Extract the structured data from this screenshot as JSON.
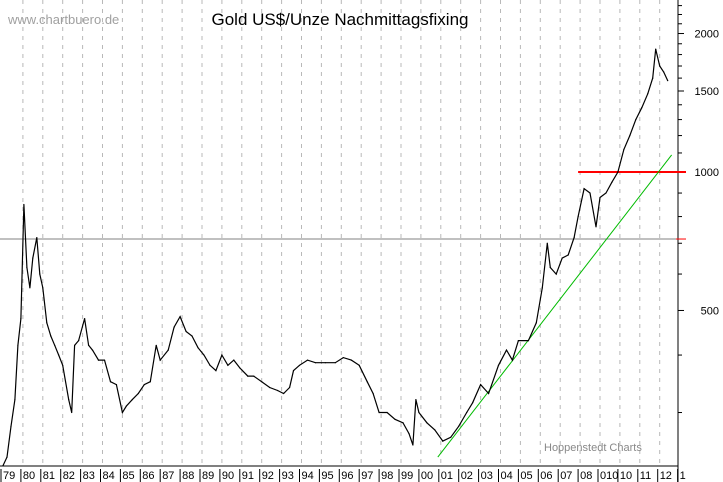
{
  "chart_data": {
    "type": "line",
    "title": "Gold US$/Unze Nachmittagsfixing",
    "watermark": "www.chartbuero.de",
    "source": "Hoppenstedt Charts",
    "y_scale": "log",
    "ylim": [
      230,
      2370
    ],
    "y_ticks": [
      500,
      1000,
      1500,
      2000
    ],
    "x_tick_labels": [
      "79",
      "80",
      "81",
      "82",
      "83",
      "84",
      "85",
      "86",
      "87",
      "88",
      "89",
      "90",
      "91",
      "92",
      "93",
      "94",
      "95",
      "96",
      "97",
      "98",
      "99",
      "00",
      "01",
      "02",
      "03",
      "04",
      "05",
      "06",
      "07",
      "08",
      "010",
      "10",
      "11",
      "12",
      "1"
    ],
    "xlim": [
      1979.0,
      2012.5
    ],
    "grid": "vertical dashed per year",
    "colors": {
      "price": "#000000",
      "resistance": "#ff0000",
      "trend": "#00bb00",
      "reference": "#808080"
    },
    "series": [
      {
        "x": [
          1979.0,
          1979.2,
          1979.4,
          1979.6,
          1979.75,
          1979.9,
          1980.05,
          1980.2,
          1980.35,
          1980.5,
          1980.7,
          1980.85,
          1981.0,
          1981.2,
          1981.4,
          1981.6,
          1981.8,
          1982.0,
          1982.3,
          1982.45,
          1982.6,
          1982.8,
          1983.1,
          1983.3,
          1983.5,
          1983.8,
          1984.1,
          1984.4,
          1984.7,
          1985.0,
          1985.2,
          1985.5,
          1985.8,
          1986.1,
          1986.4,
          1986.7,
          1986.9,
          1987.3,
          1987.6,
          1987.9,
          1988.2,
          1988.5,
          1988.8,
          1989.1,
          1989.4,
          1989.7,
          1990.0,
          1990.3,
          1990.6,
          1990.9,
          1991.3,
          1991.6,
          1992.0,
          1992.4,
          1992.8,
          1993.1,
          1993.4,
          1993.6,
          1993.9,
          1994.3,
          1994.7,
          1995.2,
          1995.7,
          1996.1,
          1996.5,
          1996.9,
          1997.3,
          1997.6,
          1997.9,
          1998.3,
          1998.7,
          1999.1,
          1999.4,
          1999.6,
          1999.75,
          1999.9,
          2000.3,
          2000.7,
          2001.1,
          2001.5,
          2001.9,
          2002.3,
          2002.6,
          2003.0,
          2003.4,
          2003.9,
          2004.3,
          2004.6,
          2004.9,
          2005.4,
          2005.8,
          2006.1,
          2006.35,
          2006.5,
          2006.8,
          2007.1,
          2007.4,
          2007.7,
          2007.9,
          2008.2,
          2008.5,
          2008.8,
          2009.0,
          2009.3,
          2009.6,
          2009.9,
          2010.2,
          2010.5,
          2010.8,
          2011.1,
          2011.4,
          2011.65,
          2011.8,
          2012.0,
          2012.2,
          2012.4
        ],
        "y": [
          230,
          240,
          280,
          320,
          420,
          480,
          850,
          620,
          560,
          650,
          720,
          600,
          560,
          470,
          440,
          420,
          400,
          380,
          320,
          300,
          420,
          430,
          480,
          420,
          410,
          390,
          390,
          350,
          345,
          300,
          310,
          320,
          330,
          345,
          350,
          420,
          390,
          410,
          460,
          485,
          450,
          440,
          415,
          400,
          380,
          370,
          400,
          380,
          390,
          375,
          360,
          360,
          350,
          340,
          335,
          330,
          340,
          370,
          380,
          390,
          385,
          385,
          385,
          395,
          390,
          380,
          350,
          330,
          300,
          300,
          290,
          285,
          270,
          255,
          320,
          300,
          285,
          275,
          260,
          265,
          280,
          300,
          315,
          345,
          330,
          380,
          410,
          390,
          430,
          430,
          470,
          560,
          700,
          620,
          600,
          650,
          660,
          720,
          800,
          920,
          900,
          760,
          880,
          900,
          950,
          1000,
          1120,
          1200,
          1300,
          1380,
          1480,
          1600,
          1850,
          1700,
          1650,
          1580
        ]
      }
    ],
    "reference_lines": [
      {
        "label": "",
        "value": 715,
        "type": "horizontal"
      },
      {
        "label": "",
        "value": 1000,
        "type": "horizontal",
        "from": 2007.9,
        "to": 2012.9
      },
      {
        "label": "",
        "type": "trend",
        "points": [
          [
            2000.85,
            240
          ],
          [
            2012.6,
            1089
          ]
        ]
      }
    ]
  }
}
